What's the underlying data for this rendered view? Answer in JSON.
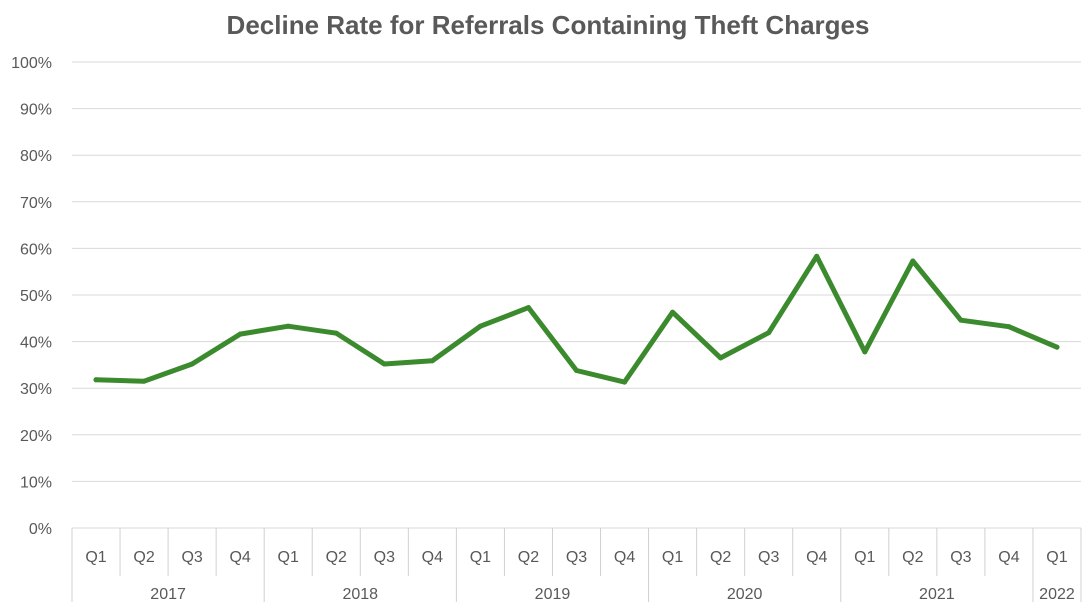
{
  "chart_data": {
    "type": "line",
    "title": "Decline Rate for Referrals Containing Theft Charges",
    "xlabel": "",
    "ylabel": "",
    "ylim": [
      0,
      100
    ],
    "yticks": [
      "0%",
      "10%",
      "20%",
      "30%",
      "40%",
      "50%",
      "60%",
      "70%",
      "80%",
      "90%",
      "100%"
    ],
    "years": [
      {
        "label": "2017",
        "quarters": [
          "Q1",
          "Q2",
          "Q3",
          "Q4"
        ]
      },
      {
        "label": "2018",
        "quarters": [
          "Q1",
          "Q2",
          "Q3",
          "Q4"
        ]
      },
      {
        "label": "2019",
        "quarters": [
          "Q1",
          "Q2",
          "Q3",
          "Q4"
        ]
      },
      {
        "label": "2020",
        "quarters": [
          "Q1",
          "Q2",
          "Q3",
          "Q4"
        ]
      },
      {
        "label": "2021",
        "quarters": [
          "Q1",
          "Q2",
          "Q3",
          "Q4"
        ]
      },
      {
        "label": "2022",
        "quarters": [
          "Q1"
        ]
      }
    ],
    "series": [
      {
        "values": [
          31.8,
          31.5,
          35.2,
          41.6,
          43.3,
          41.8,
          35.2,
          35.9,
          43.3,
          47.3,
          33.8,
          31.3,
          46.3,
          36.5,
          41.9,
          58.3,
          37.8,
          57.3,
          44.6,
          43.2,
          38.8
        ],
        "color": "#3c8a2e"
      }
    ],
    "grid": true,
    "legend": "none"
  }
}
